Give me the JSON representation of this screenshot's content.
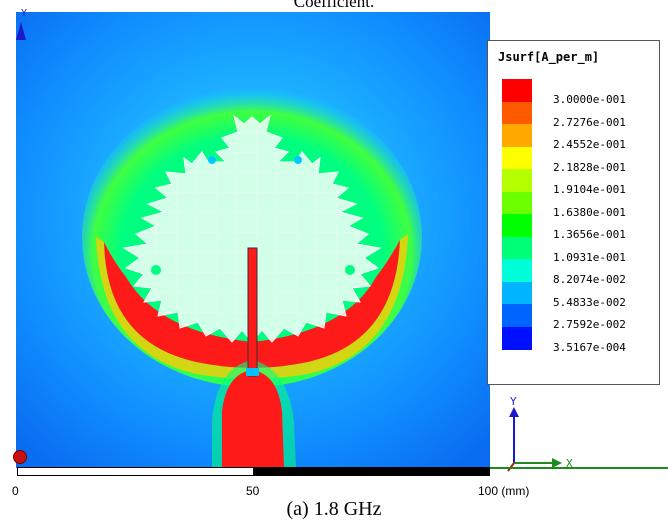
{
  "top_caption": "Coefficient.",
  "legend": {
    "title": "Jsurf[A_per_m]",
    "levels": [
      {
        "label": "3.0000e-001",
        "color": "#ff0000"
      },
      {
        "label": "2.7276e-001",
        "color": "#ff5a00"
      },
      {
        "label": "2.4552e-001",
        "color": "#ffa800"
      },
      {
        "label": "2.1828e-001",
        "color": "#ffff00"
      },
      {
        "label": "1.9104e-001",
        "color": "#b4ff00"
      },
      {
        "label": "1.6380e-001",
        "color": "#6cff00"
      },
      {
        "label": "1.3656e-001",
        "color": "#00ff00"
      },
      {
        "label": "1.0931e-001",
        "color": "#00ff78"
      },
      {
        "label": "8.2074e-002",
        "color": "#00ffd8"
      },
      {
        "label": "5.4833e-002",
        "color": "#00b4ff"
      },
      {
        "label": "2.7592e-002",
        "color": "#0064ff"
      },
      {
        "label": "3.5167e-004",
        "color": "#0010ff"
      }
    ]
  },
  "axes": {
    "y_label": "Y",
    "x_label": "X"
  },
  "scale": {
    "ticks": [
      "0",
      "50",
      "100 (mm)"
    ]
  },
  "caption": "(a) 1.8 GHz",
  "colors": {
    "background_field": "#1e90ff",
    "hot": "#ff1a1a",
    "axis_green": "#1f8a1f",
    "axis_blue": "#0000cc"
  }
}
